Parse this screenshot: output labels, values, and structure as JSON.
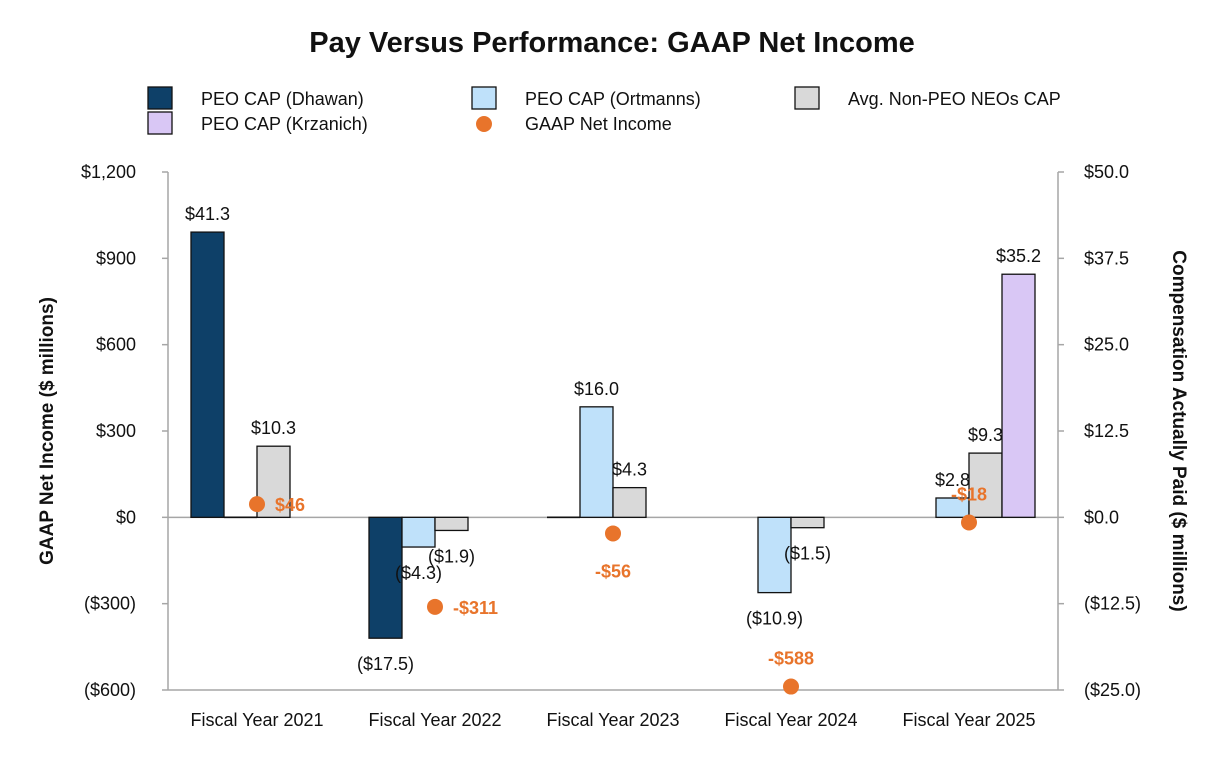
{
  "chart_data": {
    "type": "bar",
    "title": "Pay Versus Performance: GAAP Net Income",
    "categories": [
      "Fiscal Year 2021",
      "Fiscal Year 2022",
      "Fiscal Year 2023",
      "Fiscal Year 2024",
      "Fiscal Year 2025"
    ],
    "left_axis": {
      "label": "GAAP Net Income ($ millions)",
      "ylim": [
        -600,
        1200
      ],
      "ticks": [
        1200,
        900,
        600,
        300,
        0,
        -300,
        -600
      ],
      "tick_labels": [
        "$1,200",
        "$900",
        "$600",
        "$300",
        "$0",
        "($300)",
        "($600)"
      ]
    },
    "right_axis": {
      "label": "Compensation Actually Paid ($ millions)",
      "ylim": [
        -25,
        50
      ],
      "ticks": [
        50,
        37.5,
        25,
        12.5,
        0,
        -12.5,
        -25
      ],
      "tick_labels": [
        "$50.0",
        "$37.5",
        "$25.0",
        "$12.5",
        "$0.0",
        "($12.5)",
        "($25.0)"
      ]
    },
    "series": [
      {
        "name": "PEO CAP (Dhawan)",
        "axis": "right",
        "color": "#0e4068",
        "values": [
          41.3,
          -17.5,
          0,
          null,
          null
        ],
        "labels": [
          "$41.3",
          "($17.5)",
          "",
          "",
          ""
        ]
      },
      {
        "name": "PEO CAP (Ortmanns)",
        "axis": "right",
        "color": "#bfe1fa",
        "values": [
          0,
          -4.3,
          16.0,
          -10.9,
          2.8
        ],
        "labels": [
          "",
          "($4.3)",
          "$16.0",
          "($10.9)",
          "$2.8"
        ]
      },
      {
        "name": "Avg. Non-PEO NEOs CAP",
        "axis": "right",
        "color": "#d9d9d9",
        "values": [
          10.3,
          -1.9,
          4.3,
          -1.5,
          9.3
        ],
        "labels": [
          "$10.3",
          "($1.9)",
          "$4.3",
          "($1.5)",
          "$9.3"
        ]
      },
      {
        "name": "PEO CAP (Krzanich)",
        "axis": "right",
        "color": "#d9c7f5",
        "values": [
          null,
          null,
          null,
          null,
          35.2
        ],
        "labels": [
          "",
          "",
          "",
          "",
          "$35.2"
        ]
      },
      {
        "name": "GAAP Net Income",
        "axis": "left",
        "type": "scatter",
        "color": "#e8742b",
        "values": [
          46,
          -311,
          -56,
          -588,
          -18
        ],
        "labels": [
          "$46",
          "-$311",
          "-$56",
          "-$588",
          "-$18"
        ]
      }
    ],
    "legend_rows": [
      [
        "PEO CAP (Dhawan)",
        "PEO CAP (Ortmanns)",
        "Avg. Non-PEO NEOs CAP"
      ],
      [
        "PEO CAP (Krzanich)",
        "GAAP Net Income"
      ]
    ],
    "grid": false,
    "legend_position": "top"
  }
}
